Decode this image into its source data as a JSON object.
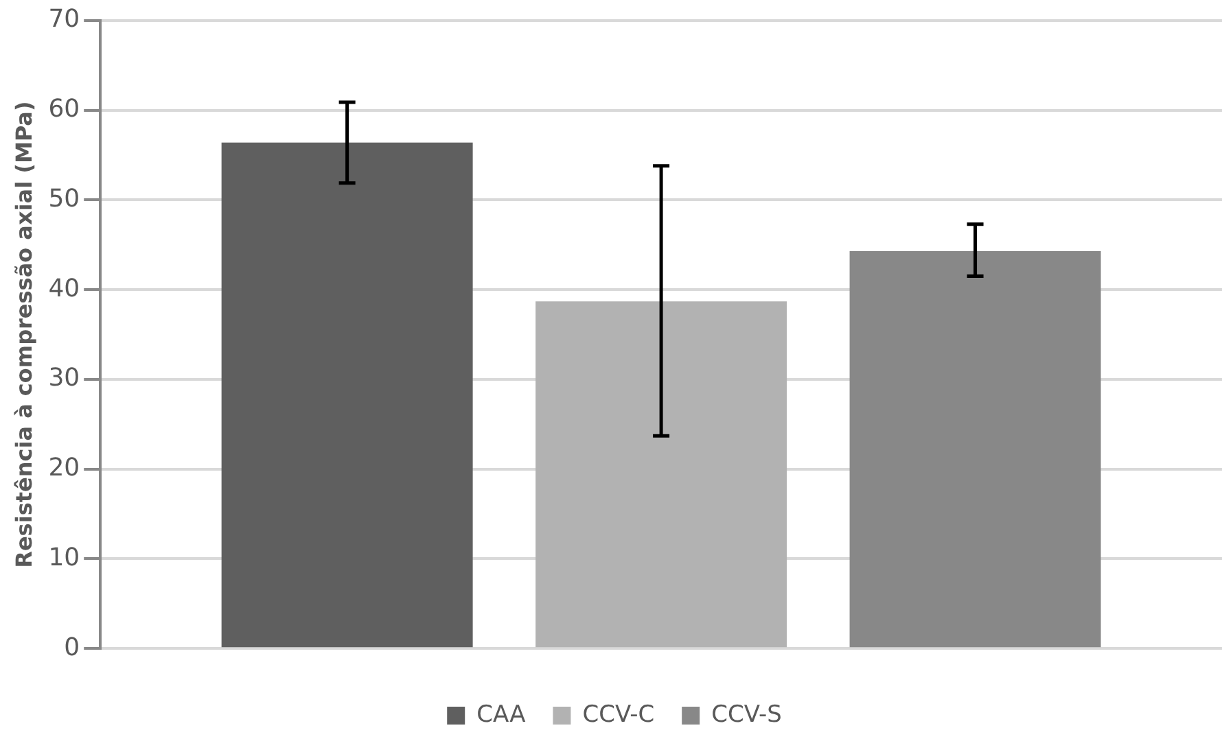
{
  "chart_data": {
    "type": "bar",
    "ylabel": "Resistência à compressão axial (MPa)",
    "categories": [
      null
    ],
    "series": [
      {
        "name": "CAA",
        "color": "#5f5f5f",
        "values": [
          56.4
        ],
        "errors": [
          [
            51.9,
            60.9
          ]
        ]
      },
      {
        "name": "CCV-C",
        "color": "#b2b2b2",
        "values": [
          38.7
        ],
        "errors": [
          [
            23.7,
            53.8
          ]
        ]
      },
      {
        "name": "CCV-S",
        "color": "#888888",
        "values": [
          44.3
        ],
        "errors": [
          [
            41.5,
            47.3
          ]
        ]
      }
    ],
    "ylim": [
      0,
      70
    ],
    "yticks": [
      0,
      10,
      20,
      30,
      40,
      50,
      60,
      70
    ],
    "grid": "y",
    "legend": "bottom"
  }
}
